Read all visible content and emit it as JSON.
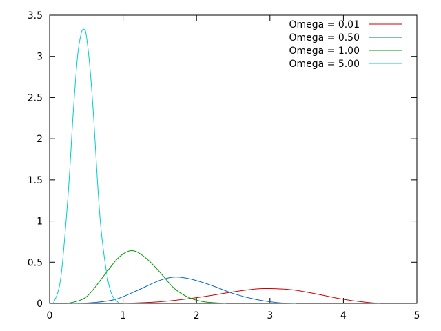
{
  "chart_data": {
    "type": "line",
    "title": "",
    "xlabel": "",
    "ylabel": "",
    "xlim": [
      0,
      5
    ],
    "ylim": [
      0,
      3.5
    ],
    "x_ticks": [
      "0",
      "1",
      "2",
      "3",
      "4",
      "5"
    ],
    "y_ticks": [
      "0",
      "0.5",
      "1",
      "1.5",
      "2",
      "2.5",
      "3",
      "3.5"
    ],
    "grid": false,
    "legend_position": "top-right",
    "series": [
      {
        "name": "Omega = 0.01",
        "color": "#cc0000",
        "x": [
          1.0,
          1.5,
          2.0,
          2.5,
          2.8,
          3.0,
          3.3,
          3.6,
          4.0,
          4.3,
          4.5
        ],
        "y": [
          0.0,
          0.02,
          0.07,
          0.14,
          0.175,
          0.18,
          0.165,
          0.12,
          0.05,
          0.015,
          0.0
        ]
      },
      {
        "name": "Omega = 0.50",
        "color": "#0066cc",
        "x": [
          0.3,
          0.6,
          0.9,
          1.2,
          1.5,
          1.7,
          1.9,
          2.2,
          2.5,
          2.8,
          3.1,
          3.35
        ],
        "y": [
          0.0,
          0.01,
          0.05,
          0.16,
          0.28,
          0.32,
          0.3,
          0.22,
          0.12,
          0.05,
          0.01,
          0.0
        ]
      },
      {
        "name": "Omega = 1.00",
        "color": "#009900",
        "x": [
          0.25,
          0.5,
          0.75,
          0.9,
          1.0,
          1.1,
          1.2,
          1.35,
          1.5,
          1.7,
          1.9,
          2.1,
          2.4
        ],
        "y": [
          0.0,
          0.08,
          0.35,
          0.52,
          0.6,
          0.64,
          0.62,
          0.52,
          0.38,
          0.18,
          0.07,
          0.02,
          0.0
        ]
      },
      {
        "name": "Omega = 5.00",
        "color": "#00cccc",
        "x": [
          0.05,
          0.15,
          0.25,
          0.32,
          0.38,
          0.43,
          0.47,
          0.5,
          0.55,
          0.6,
          0.65,
          0.7,
          0.78,
          0.85,
          0.95
        ],
        "y": [
          0.0,
          0.3,
          1.3,
          2.3,
          3.0,
          3.28,
          3.33,
          3.25,
          2.85,
          2.25,
          1.5,
          0.9,
          0.35,
          0.1,
          0.0
        ]
      }
    ]
  }
}
